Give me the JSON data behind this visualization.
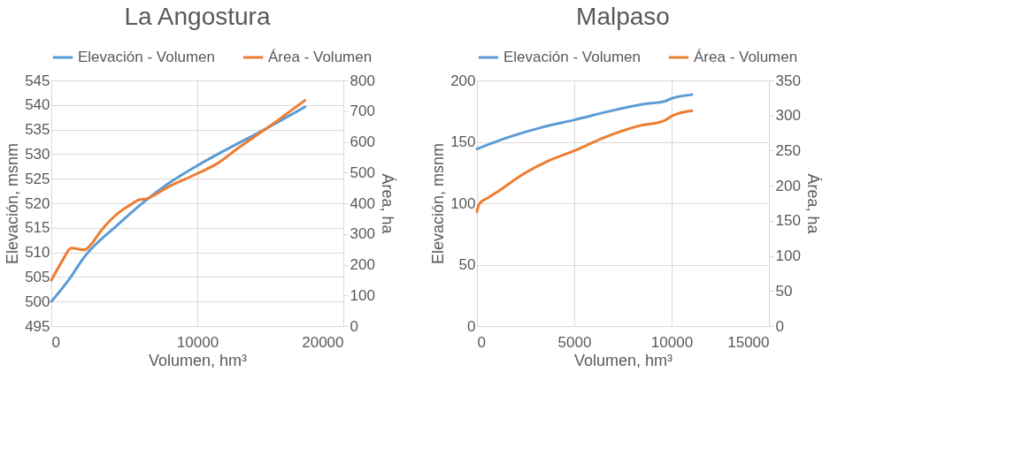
{
  "chart_data": [
    {
      "type": "line",
      "title": "La Angostura",
      "xlabel": "Volumen, hm³",
      "ylabel": "Elevación, msnm",
      "y2label": "Área, ha",
      "xlim": [
        0,
        20000
      ],
      "xticks": [
        0,
        10000,
        20000
      ],
      "ylim": [
        495,
        545
      ],
      "yticks": [
        495,
        500,
        505,
        510,
        515,
        520,
        525,
        530,
        535,
        540,
        545
      ],
      "y2lim": [
        0,
        800
      ],
      "y2ticks": [
        0,
        100,
        200,
        300,
        400,
        500,
        600,
        700,
        800
      ],
      "grid": true,
      "legend": "top",
      "series": [
        {
          "name": "Elevación - Volumen",
          "color": "#5b9bd5",
          "x": [
            0,
            1286,
            2245,
            4548,
            6275,
            8003,
            10017,
            11841,
            14719,
            17367
          ],
          "values": [
            500,
            504.8,
            509,
            515.6,
            520.1,
            524,
            527.7,
            530.7,
            535.2,
            539.6
          ]
        },
        {
          "name": "Área - Volumen",
          "color": "#ed7d31",
          "axis": "y2",
          "x": [
            0,
            710,
            1382,
            2245,
            2821,
            3397,
            4356,
            5316,
            6084,
            6468,
            8003,
            9922,
            11457,
            12800,
            14719,
            17367
          ],
          "values": [
            149,
            209,
            254,
            248,
            272,
            310,
            359,
            392,
            412,
            414,
            453,
            495,
            532,
            580,
            643,
            735
          ]
        }
      ]
    },
    {
      "type": "line",
      "title": "Malpaso",
      "xlabel": "Volumen, hm³",
      "ylabel": "Elevación, msnm",
      "y2label": "Área, ha",
      "xlim": [
        0,
        15000
      ],
      "xticks": [
        0,
        5000,
        10000,
        15000
      ],
      "ylim": [
        0,
        200
      ],
      "yticks": [
        0,
        50,
        100,
        150,
        200
      ],
      "y2lim": [
        0,
        350
      ],
      "y2ticks": [
        0,
        50,
        100,
        150,
        200,
        250,
        300,
        350
      ],
      "grid": true,
      "legend": "top",
      "series": [
        {
          "name": "Elevación - Volumen",
          "color": "#5b9bd5",
          "x": [
            0,
            1571,
            3286,
            5016,
            6857,
            8571,
            9643,
            10000,
            11043
          ],
          "values": [
            144.2,
            153.5,
            161.6,
            167.9,
            175.1,
            180.7,
            183,
            185.3,
            188.4
          ]
        },
        {
          "name": "Área - Volumen",
          "color": "#ed7d31",
          "axis": "y2",
          "x": [
            0,
            114,
            571,
            1143,
            2286,
            3571,
            5016,
            6571,
            8286,
            9643,
            10071,
            11043
          ],
          "values": [
            163,
            174,
            183,
            193,
            215,
            234,
            250,
            269,
            285,
            293,
            300,
            307
          ]
        }
      ]
    }
  ]
}
